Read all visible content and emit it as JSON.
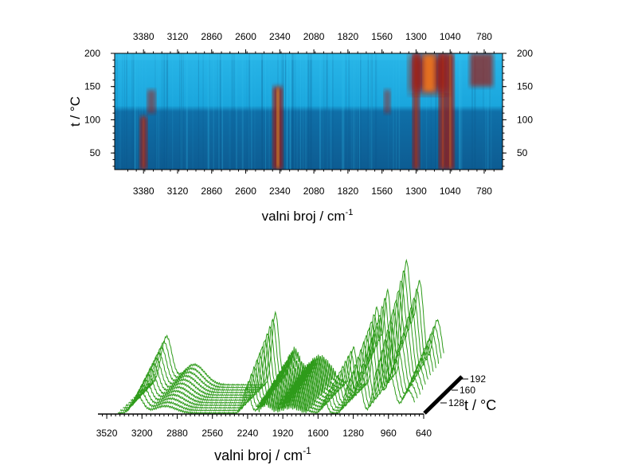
{
  "chart_data": [
    {
      "type": "heatmap",
      "title": "",
      "xlabel": "valni broj / cm",
      "xlabel_superscript": "-1",
      "ylabel": "t / °C",
      "xlim": [
        3600,
        640
      ],
      "ylim": [
        25,
        200
      ],
      "x_ticks": [
        3380,
        3120,
        2860,
        2600,
        2340,
        2080,
        1820,
        1560,
        1300,
        1040,
        780
      ],
      "y_ticks_left": [
        200,
        150,
        100,
        50
      ],
      "y_ticks_right": [
        200,
        150,
        100,
        50
      ],
      "bands": [
        {
          "center": 3380,
          "width": 20,
          "t_from": 25,
          "t_to": 105,
          "intensity": 0.85
        },
        {
          "center": 3320,
          "width": 30,
          "t_from": 110,
          "t_to": 145,
          "intensity": 0.45
        },
        {
          "center": 2355,
          "width": 40,
          "t_from": 25,
          "t_to": 150,
          "intensity": 0.95
        },
        {
          "center": 1520,
          "width": 15,
          "t_from": 110,
          "t_to": 145,
          "intensity": 0.4
        },
        {
          "center": 1300,
          "width": 18,
          "t_from": 25,
          "t_to": 200,
          "intensity": 0.85
        },
        {
          "center": 1095,
          "width": 25,
          "t_from": 25,
          "t_to": 200,
          "intensity": 0.9
        },
        {
          "center": 1040,
          "width": 25,
          "t_from": 25,
          "t_to": 200,
          "intensity": 1.0
        },
        {
          "center": 1200,
          "width": 250,
          "t_from": 140,
          "t_to": 200,
          "intensity": 0.9
        },
        {
          "center": 800,
          "width": 140,
          "t_from": 150,
          "t_to": 200,
          "intensity": 0.7
        }
      ],
      "colors": {
        "background": "#19a9df",
        "dark": "#0a3d6e",
        "hot": "#b8140f",
        "peak": "#ffe44a"
      }
    },
    {
      "type": "line",
      "title": "",
      "xlabel": "valni broj / cm",
      "xlabel_superscript": "-1",
      "zlabel": "t / °C",
      "xlim": [
        3600,
        640
      ],
      "x_ticks": [
        3520,
        3200,
        2880,
        2560,
        2240,
        1920,
        1600,
        1280,
        960,
        640
      ],
      "z_ticks": [
        128,
        160,
        192
      ],
      "series_count": 12,
      "series_color": "#2e9b1a",
      "peaks": [
        {
          "center": 3240,
          "width": 70,
          "height": 0.28
        },
        {
          "center": 2990,
          "width": 140,
          "height": 0.12
        },
        {
          "center": 2250,
          "width": 45,
          "height": 0.42
        },
        {
          "center": 2080,
          "width": 70,
          "height": 0.18
        },
        {
          "center": 1850,
          "width": 150,
          "height": 0.15
        },
        {
          "center": 1540,
          "width": 35,
          "height": 0.22
        },
        {
          "center": 1330,
          "width": 45,
          "height": 0.45
        },
        {
          "center": 1230,
          "width": 45,
          "height": 0.55
        },
        {
          "center": 1060,
          "width": 55,
          "height": 0.72
        },
        {
          "center": 940,
          "width": 55,
          "height": 0.6
        },
        {
          "center": 780,
          "width": 70,
          "height": 0.38
        }
      ]
    }
  ]
}
